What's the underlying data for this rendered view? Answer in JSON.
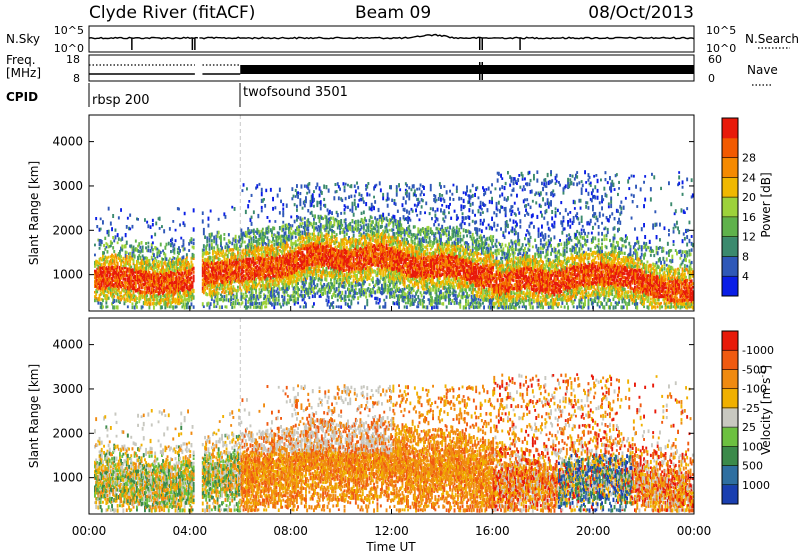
{
  "header": {
    "station": "Clyde River (fitACF)",
    "beam": "Beam 09",
    "date": "08/Oct/2013"
  },
  "top_panels": {
    "nsky": {
      "label": "N.Sky",
      "ticks_left": [
        "10^5",
        "10^0"
      ],
      "ticks_right": [
        "10^5",
        "10^0"
      ],
      "right_label": "N.Search"
    },
    "freq": {
      "label_line1": "Freq.",
      "label_line2": "[MHz]",
      "ticks_left": [
        "18",
        "8"
      ],
      "ticks_right": [
        "60",
        "0"
      ],
      "right_label": "Nave"
    },
    "cpid": {
      "label": "CPID",
      "programs": [
        {
          "name": "rbsp 200",
          "start_hour": 0
        },
        {
          "name": "twofsound 3501",
          "start_hour": 6
        }
      ]
    }
  },
  "chart_data": [
    {
      "type": "heatmap",
      "name": "power-panel",
      "ylabel": "Slant Range [km]",
      "yticks": [
        1000,
        2000,
        3000,
        4000
      ],
      "ylim": [
        180,
        4600
      ],
      "xlim": [
        0,
        24
      ],
      "colorbar": {
        "label": "Power [dB]",
        "ticks": [
          "4",
          "8",
          "12",
          "16",
          "20",
          "24",
          "28"
        ],
        "colors": [
          "#0a1ee6",
          "#2f58b8",
          "#3b8a6e",
          "#5fb24b",
          "#9dd23a",
          "#f0b800",
          "#f58a00",
          "#f25a00",
          "#e81a0a"
        ]
      }
    },
    {
      "type": "heatmap",
      "name": "velocity-panel",
      "ylabel": "Slant Range [km]",
      "yticks": [
        1000,
        2000,
        3000,
        4000
      ],
      "ylim": [
        180,
        4600
      ],
      "xlim": [
        0,
        24
      ],
      "xlabel": "Time UT",
      "xticks": [
        "00:00",
        "04:00",
        "08:00",
        "12:00",
        "16:00",
        "20:00",
        "00:00"
      ],
      "colorbar": {
        "label": "Velocity [m s",
        "label_superscript": "-1",
        "label_close": "]",
        "ticks": [
          "1000",
          "500",
          "100",
          "25",
          "-25",
          "-100",
          "-500",
          "-1000"
        ],
        "colors": [
          "#1a3fb0",
          "#2f6fa0",
          "#3b8a4a",
          "#6cc040",
          "#c8c8c0",
          "#f0b000",
          "#f08a10",
          "#f05a10",
          "#e81a0a"
        ]
      }
    }
  ]
}
